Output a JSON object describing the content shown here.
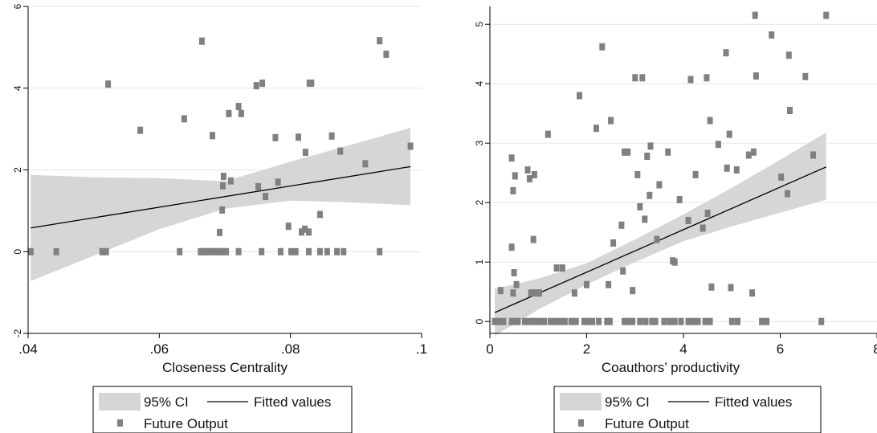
{
  "chart_data": [
    {
      "type": "scatter",
      "title": "",
      "xlabel": "Closeness Centrality",
      "ylabel": "",
      "xlim": [
        0.04,
        0.1
      ],
      "ylim": [
        -2,
        6
      ],
      "xticks": [
        0.04,
        0.06,
        0.08,
        0.1
      ],
      "xtick_labels": [
        ".04",
        ".06",
        ".08",
        ".1"
      ],
      "yticks": [
        -2,
        0,
        2,
        4,
        6
      ],
      "ytick_labels": [
        "-2",
        "0",
        "2",
        "4",
        "6"
      ],
      "grid": true,
      "legend": {
        "placement": "bottom",
        "labels": {
          "ci": "95% CI",
          "fit": "Fitted values",
          "points": "Future Output"
        }
      },
      "colors": {
        "ci": "#d6d6d6",
        "points": "#808080",
        "fit": "#000000",
        "grid": "#e6e6e6"
      },
      "fitted_line": {
        "x": [
          0.0404,
          0.0983
        ],
        "y": [
          0.58,
          2.08
        ]
      },
      "ci_band": {
        "x": [
          0.0404,
          0.05,
          0.06,
          0.07,
          0.08,
          0.09,
          0.0983
        ],
        "lower": [
          -0.72,
          -0.1,
          0.55,
          1.05,
          1.25,
          1.2,
          1.14
        ],
        "upper": [
          1.88,
          1.82,
          1.8,
          1.72,
          2.2,
          2.65,
          3.03
        ]
      },
      "series": [
        {
          "x": [
            0.0404,
            0.0443,
            0.0513,
            0.0519,
            0.0631,
            0.0663,
            0.0668,
            0.0672,
            0.0676,
            0.0682,
            0.0686,
            0.0691,
            0.0696,
            0.0702,
            0.0721,
            0.0756,
            0.0785,
            0.0801,
            0.0808,
            0.0828,
            0.0845,
            0.0856,
            0.0871,
            0.0881,
            0.0936,
            0.0522,
            0.0571,
            0.0638,
            0.0665,
            0.0681,
            0.0692,
            0.0696,
            0.0697,
            0.0698,
            0.0706,
            0.0709,
            0.0721,
            0.0725,
            0.0748,
            0.0751,
            0.0757,
            0.0762,
            0.0777,
            0.0781,
            0.0797,
            0.0812,
            0.0817,
            0.0822,
            0.0823,
            0.0828,
            0.0829,
            0.0832,
            0.0845,
            0.0863,
            0.0876,
            0.0914,
            0.0936,
            0.0946,
            0.0983
          ],
          "y": [
            0,
            0,
            0,
            0,
            0,
            0,
            0,
            0,
            0,
            0,
            0,
            0,
            0,
            0,
            0,
            0,
            0,
            0,
            0,
            0,
            0,
            0,
            0,
            0,
            0,
            4.1,
            2.97,
            3.25,
            5.15,
            2.84,
            0.47,
            1.02,
            1.61,
            1.84,
            3.38,
            1.73,
            3.55,
            3.38,
            4.06,
            1.59,
            4.12,
            1.35,
            2.79,
            1.7,
            0.62,
            2.8,
            0.48,
            0.55,
            2.43,
            0.48,
            4.12,
            4.12,
            0.91,
            2.83,
            2.46,
            2.15,
            5.16,
            4.83,
            2.58
          ]
        }
      ]
    },
    {
      "type": "scatter",
      "title": "",
      "xlabel": "Coauthors’ productivity",
      "ylabel": "",
      "xlim": [
        0,
        8
      ],
      "ylim": [
        -0.2,
        5.3
      ],
      "xticks": [
        0,
        2,
        4,
        6,
        8
      ],
      "xtick_labels": [
        "0",
        "2",
        "4",
        "6",
        "8"
      ],
      "yticks": [
        0,
        1,
        2,
        3,
        4,
        5
      ],
      "ytick_labels": [
        "0",
        "1",
        "2",
        "3",
        "4",
        "5"
      ],
      "grid": true,
      "legend": {
        "placement": "bottom",
        "labels": {
          "ci": "95% CI",
          "fit": "Fitted values",
          "points": "Future Output"
        }
      },
      "colors": {
        "ci": "#d6d6d6",
        "points": "#808080",
        "fit": "#000000",
        "grid": "#e6e6e6"
      },
      "fitted_line": {
        "x": [
          0.1,
          6.95
        ],
        "y": [
          0.15,
          2.6
        ]
      },
      "ci_band": {
        "x": [
          0.1,
          1,
          2,
          3,
          4,
          5,
          6,
          6.95
        ],
        "lower": [
          -0.24,
          0.2,
          0.62,
          1.0,
          1.35,
          1.6,
          1.83,
          2.05
        ],
        "upper": [
          0.55,
          0.72,
          0.98,
          1.38,
          1.8,
          2.25,
          2.72,
          3.18
        ]
      },
      "series": [
        {
          "x": [
            0.1,
            0.18,
            0.28,
            0.45,
            0.5,
            0.58,
            0.72,
            0.82,
            0.92,
            1.02,
            1.12,
            1.25,
            1.35,
            1.45,
            1.55,
            1.68,
            1.78,
            1.95,
            2.05,
            2.12,
            2.25,
            2.42,
            2.48,
            2.78,
            2.88,
            2.95,
            3.1,
            3.22,
            3.35,
            3.42,
            3.6,
            3.72,
            3.82,
            3.95,
            4.1,
            4.2,
            4.3,
            4.45,
            4.55,
            5.0,
            5.12,
            5.62,
            5.72,
            6.85,
            0.22,
            0.45,
            0.45,
            0.48,
            0.48,
            0.5,
            0.52,
            0.55,
            0.78,
            0.82,
            0.85,
            0.9,
            0.92,
            0.95,
            1.02,
            1.2,
            1.38,
            1.5,
            1.75,
            1.85,
            2.0,
            2.2,
            2.32,
            2.45,
            2.5,
            2.55,
            2.72,
            2.75,
            2.78,
            2.85,
            2.95,
            3.0,
            3.05,
            3.1,
            3.15,
            3.2,
            3.25,
            3.3,
            3.32,
            3.45,
            3.5,
            3.68,
            3.78,
            3.82,
            3.92,
            4.1,
            4.15,
            4.25,
            4.4,
            4.48,
            4.5,
            4.55,
            4.58,
            4.72,
            4.88,
            4.9,
            4.95,
            4.98,
            5.1,
            5.35,
            5.42,
            5.45,
            5.48,
            5.5,
            5.82,
            6.02,
            6.15,
            6.18,
            6.2,
            6.52,
            6.68,
            6.95
          ],
          "y": [
            0,
            0,
            0,
            0,
            0,
            0,
            0,
            0,
            0,
            0,
            0,
            0,
            0,
            0,
            0,
            0,
            0,
            0,
            0,
            0,
            0,
            0,
            0,
            0,
            0,
            0,
            0,
            0,
            0,
            0,
            0,
            0,
            0,
            0,
            0,
            0,
            0,
            0,
            0,
            0,
            0,
            0,
            0,
            0,
            0.52,
            2.75,
            1.25,
            0.48,
            2.2,
            0.82,
            2.45,
            0.62,
            2.55,
            2.4,
            0.48,
            1.38,
            2.47,
            0.48,
            0.48,
            3.15,
            0.9,
            0.9,
            0.48,
            3.8,
            0.62,
            3.25,
            4.62,
            0.62,
            3.38,
            1.32,
            1.62,
            0.85,
            2.85,
            2.85,
            0.52,
            4.1,
            2.47,
            1.93,
            4.1,
            1.72,
            2.78,
            2.12,
            2.95,
            1.38,
            2.3,
            2.85,
            1.02,
            1.0,
            2.05,
            1.7,
            4.07,
            2.47,
            1.57,
            4.1,
            1.82,
            3.38,
            0.58,
            2.98,
            4.52,
            2.58,
            3.15,
            0.57,
            2.55,
            2.8,
            0.48,
            2.85,
            5.15,
            4.13,
            4.82,
            2.43,
            2.15,
            4.48,
            3.55,
            4.12,
            2.8,
            5.15
          ]
        }
      ]
    }
  ]
}
